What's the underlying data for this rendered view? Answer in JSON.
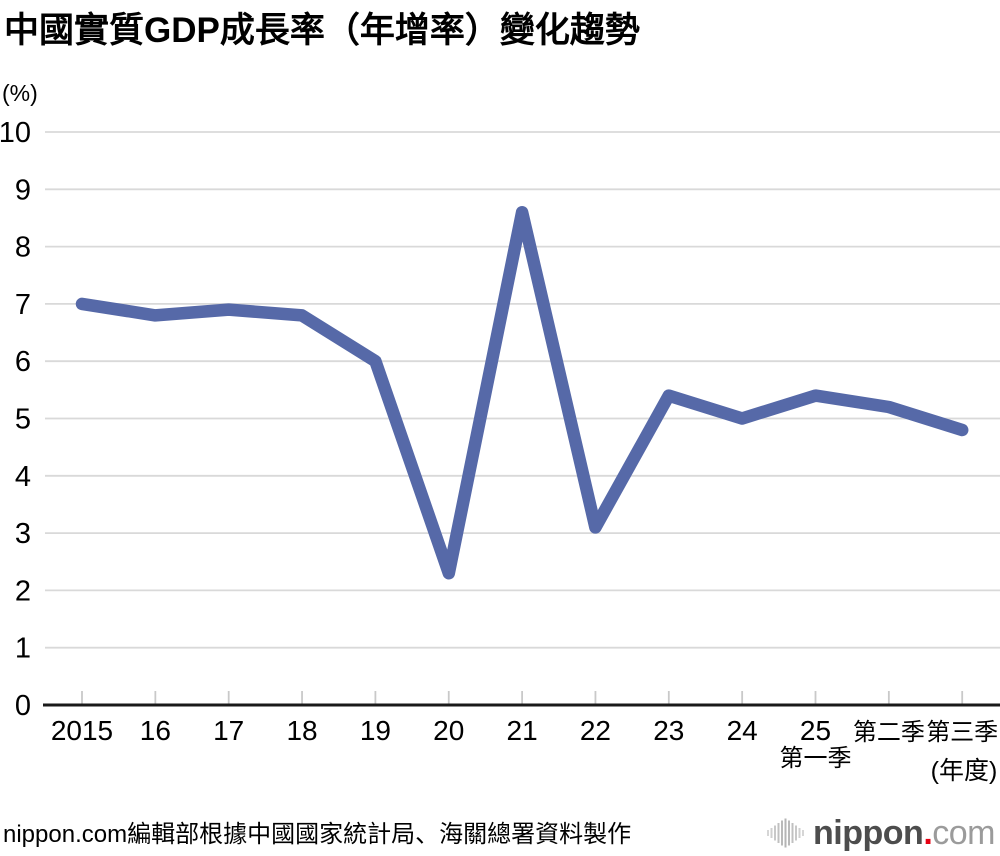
{
  "title": "中國實質GDP成長率（年增率）變化趨勢",
  "y_unit_label": "(%)",
  "footer": {
    "source_text": "nippon.com編輯部根據中國國家統計局、海關總署資料製作"
  },
  "logo": {
    "icon": "soundwave-bars-icon",
    "text_main": "nippon",
    "dot": ".",
    "text_suffix": "com",
    "dot_color": "#e60012"
  },
  "chart_data": {
    "type": "line",
    "title": "中國實質GDP成長率（年增率）變化趨勢",
    "categories": [
      "2015",
      "16",
      "17",
      "18",
      "19",
      "20",
      "21",
      "22",
      "23",
      "24",
      "25",
      "第二季",
      "第三季"
    ],
    "x_sublabel": {
      "index": 10,
      "text": "第一季"
    },
    "values": [
      7.0,
      6.8,
      6.9,
      6.8,
      6.0,
      2.3,
      8.6,
      3.1,
      5.4,
      5.0,
      5.4,
      5.2,
      4.8
    ],
    "series_name": "中國實質GDP成長率（年增率）",
    "ylabel": "(%)",
    "xlabel": "(年度)",
    "ylim": [
      0,
      10
    ],
    "y_ticks": [
      0,
      1,
      2,
      3,
      4,
      5,
      6,
      7,
      8,
      9,
      10
    ],
    "grid": true,
    "legend": "none",
    "line_color": "#5669a8",
    "grid_color": "#d9d9d9",
    "axis_color": "#1a1a1a",
    "tick_color": "#c9c9c9"
  }
}
